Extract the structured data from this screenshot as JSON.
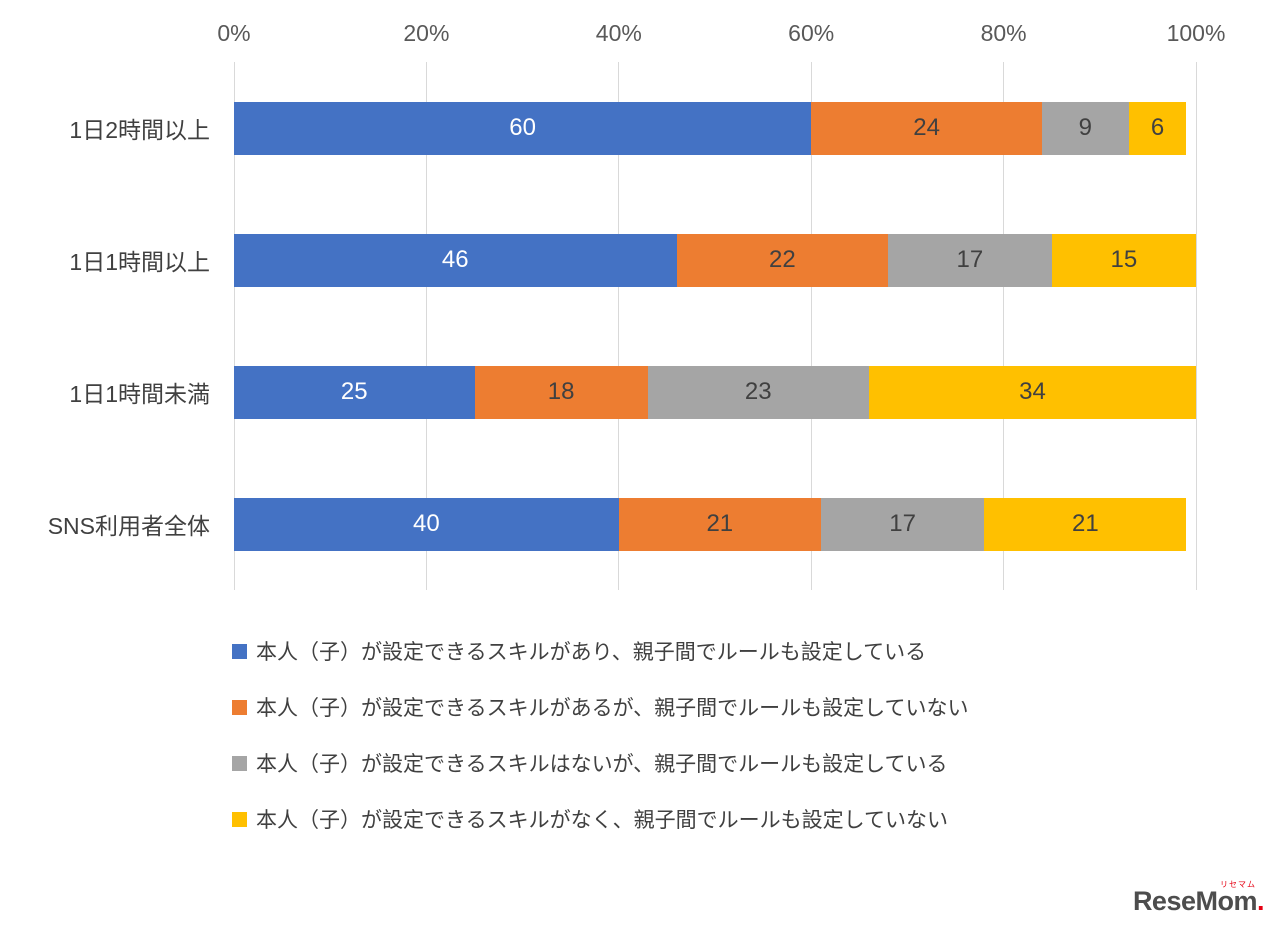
{
  "chart_data": {
    "type": "bar",
    "orientation": "horizontal-stacked",
    "title": "",
    "xlabel": "",
    "ylabel": "",
    "xlim": [
      0,
      100
    ],
    "grid": true,
    "legend_position": "bottom-left",
    "x_ticks": [
      "0%",
      "20%",
      "40%",
      "60%",
      "80%",
      "100%"
    ],
    "categories": [
      "1日2時間以上",
      "1日1時間以上",
      "1日1時間未満",
      "SNS利用者全体"
    ],
    "series": [
      {
        "name": "本人（子）が設定できるスキルがあり、親子間でルールも設定している",
        "color": "#4472C4",
        "label_color": "#FFFFFF",
        "values": [
          60,
          46,
          25,
          40
        ]
      },
      {
        "name": "本人（子）が設定できるスキルがあるが、親子間でルールも設定していない",
        "color": "#ED7D31",
        "label_color": "#404040",
        "values": [
          24,
          22,
          18,
          21
        ]
      },
      {
        "name": "本人（子）が設定できるスキルはないが、親子間でルールも設定している",
        "color": "#A5A5A5",
        "label_color": "#404040",
        "values": [
          9,
          17,
          23,
          17
        ]
      },
      {
        "name": "本人（子）が設定できるスキルがなく、親子間でルールも設定していない",
        "color": "#FFC000",
        "label_color": "#404040",
        "values": [
          6,
          15,
          34,
          21
        ]
      }
    ]
  },
  "footer": {
    "logo_text": "ReseMom",
    "logo_dot": ".",
    "logo_ruby": "リセマム",
    "logo_color": "#4D4D4D",
    "logo_accent": "#E60012"
  }
}
